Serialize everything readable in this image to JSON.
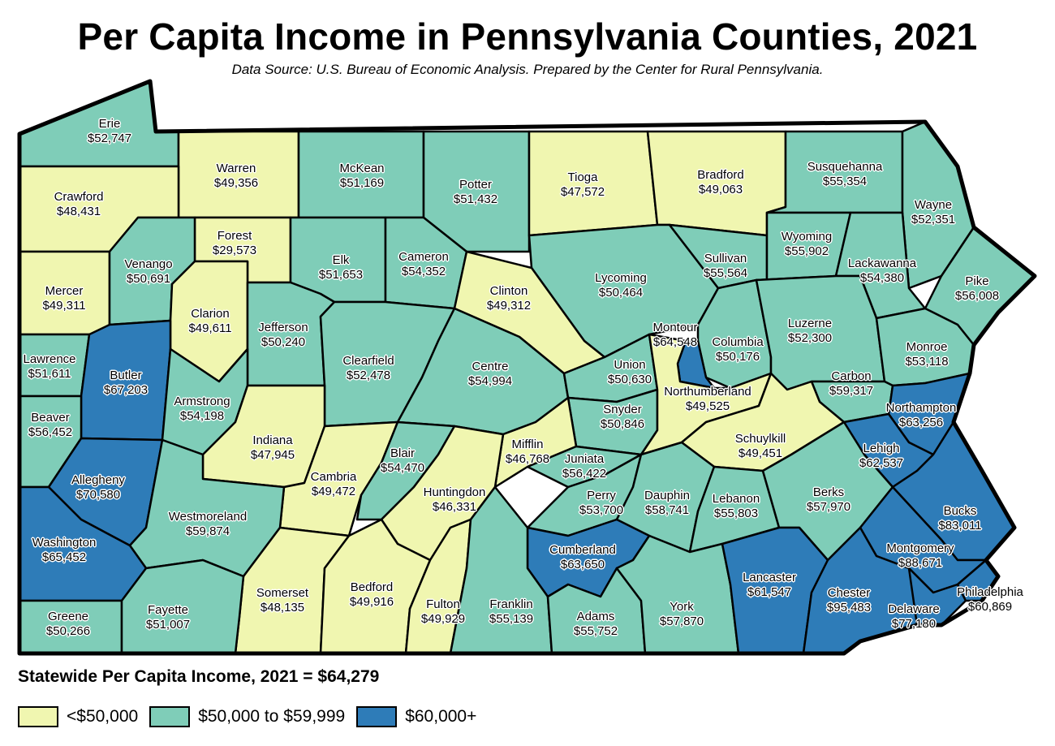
{
  "title": "Per Capita Income in Pennsylvania Counties, 2021",
  "subtitle": "Data Source: U.S. Bureau of Economic Analysis. Prepared by the Center for Rural Pennsylvania.",
  "statewide": "Statewide Per Capita Income, 2021 = $64,279",
  "colors": {
    "low": "#f0f6b0",
    "mid": "#7fcdb8",
    "high": "#2e7cb8"
  },
  "legend": [
    {
      "key": "low",
      "label": "<$50,000"
    },
    {
      "key": "mid",
      "label": "$50,000 to $59,999"
    },
    {
      "key": "high",
      "label": "$60,000+"
    }
  ],
  "counties": [
    {
      "key": "erie",
      "name": "Erie",
      "value": "$52,747",
      "class": "mid"
    },
    {
      "key": "crawford",
      "name": "Crawford",
      "value": "$48,431",
      "class": "low"
    },
    {
      "key": "warren",
      "name": "Warren",
      "value": "$49,356",
      "class": "low"
    },
    {
      "key": "mckean",
      "name": "McKean",
      "value": "$51,169",
      "class": "mid"
    },
    {
      "key": "potter",
      "name": "Potter",
      "value": "$51,432",
      "class": "mid"
    },
    {
      "key": "tioga",
      "name": "Tioga",
      "value": "$47,572",
      "class": "low"
    },
    {
      "key": "bradford",
      "name": "Bradford",
      "value": "$49,063",
      "class": "low"
    },
    {
      "key": "susquehanna",
      "name": "Susquehanna",
      "value": "$55,354",
      "class": "mid"
    },
    {
      "key": "wayne",
      "name": "Wayne",
      "value": "$52,351",
      "class": "mid"
    },
    {
      "key": "forest",
      "name": "Forest",
      "value": "$29,573",
      "class": "low"
    },
    {
      "key": "elk",
      "name": "Elk",
      "value": "$51,653",
      "class": "mid"
    },
    {
      "key": "cameron",
      "name": "Cameron",
      "value": "$54,352",
      "class": "mid"
    },
    {
      "key": "mercer",
      "name": "Mercer",
      "value": "$49,311",
      "class": "low"
    },
    {
      "key": "venango",
      "name": "Venango",
      "value": "$50,691",
      "class": "mid"
    },
    {
      "key": "clarion",
      "name": "Clarion",
      "value": "$49,611",
      "class": "low"
    },
    {
      "key": "jefferson",
      "name": "Jefferson",
      "value": "$50,240",
      "class": "mid"
    },
    {
      "key": "clinton",
      "name": "Clinton",
      "value": "$49,312",
      "class": "low"
    },
    {
      "key": "lycoming",
      "name": "Lycoming",
      "value": "$50,464",
      "class": "mid"
    },
    {
      "key": "sullivan",
      "name": "Sullivan",
      "value": "$55,564",
      "class": "mid"
    },
    {
      "key": "wyoming",
      "name": "Wyoming",
      "value": "$55,902",
      "class": "mid"
    },
    {
      "key": "lackawanna",
      "name": "Lackawanna",
      "value": "$54,380",
      "class": "mid"
    },
    {
      "key": "pike",
      "name": "Pike",
      "value": "$56,008",
      "class": "mid"
    },
    {
      "key": "lawrence",
      "name": "Lawrence",
      "value": "$51,611",
      "class": "mid"
    },
    {
      "key": "butler",
      "name": "Butler",
      "value": "$67,203",
      "class": "high"
    },
    {
      "key": "clearfield",
      "name": "Clearfield",
      "value": "$52,478",
      "class": "mid"
    },
    {
      "key": "centre",
      "name": "Centre",
      "value": "$54,994",
      "class": "mid"
    },
    {
      "key": "union",
      "name": "Union",
      "value": "$50,630",
      "class": "mid"
    },
    {
      "key": "montour",
      "name": "Montour",
      "value": "$64,548",
      "class": "high"
    },
    {
      "key": "columbia",
      "name": "Columbia",
      "value": "$50,176",
      "class": "mid"
    },
    {
      "key": "luzerne",
      "name": "Luzerne",
      "value": "$52,300",
      "class": "mid"
    },
    {
      "key": "monroe",
      "name": "Monroe",
      "value": "$53,118",
      "class": "mid"
    },
    {
      "key": "beaver",
      "name": "Beaver",
      "value": "$56,452",
      "class": "mid"
    },
    {
      "key": "armstrong",
      "name": "Armstrong",
      "value": "$54,198",
      "class": "mid"
    },
    {
      "key": "indiana",
      "name": "Indiana",
      "value": "$47,945",
      "class": "low"
    },
    {
      "key": "snyder",
      "name": "Snyder",
      "value": "$50,846",
      "class": "mid"
    },
    {
      "key": "northumberland",
      "name": "Northumberland",
      "value": "$49,525",
      "class": "low"
    },
    {
      "key": "carbon",
      "name": "Carbon",
      "value": "$59,317",
      "class": "mid"
    },
    {
      "key": "northampton",
      "name": "Northampton",
      "value": "$63,256",
      "class": "high"
    },
    {
      "key": "allegheny",
      "name": "Allegheny",
      "value": "$70,580",
      "class": "high"
    },
    {
      "key": "cambria",
      "name": "Cambria",
      "value": "$49,472",
      "class": "low"
    },
    {
      "key": "blair",
      "name": "Blair",
      "value": "$54,470",
      "class": "mid"
    },
    {
      "key": "mifflin",
      "name": "Mifflin",
      "value": "$46,768",
      "class": "low"
    },
    {
      "key": "juniata",
      "name": "Juniata",
      "value": "$56,422",
      "class": "mid"
    },
    {
      "key": "schuylkill",
      "name": "Schuylkill",
      "value": "$49,451",
      "class": "low"
    },
    {
      "key": "lehigh",
      "name": "Lehigh",
      "value": "$62,537",
      "class": "high"
    },
    {
      "key": "westmoreland",
      "name": "Westmoreland",
      "value": "$59,874",
      "class": "mid"
    },
    {
      "key": "huntingdon",
      "name": "Huntingdon",
      "value": "$46,331",
      "class": "low"
    },
    {
      "key": "perry",
      "name": "Perry",
      "value": "$53,700",
      "class": "mid"
    },
    {
      "key": "dauphin",
      "name": "Dauphin",
      "value": "$58,741",
      "class": "mid"
    },
    {
      "key": "lebanon",
      "name": "Lebanon",
      "value": "$55,803",
      "class": "mid"
    },
    {
      "key": "berks",
      "name": "Berks",
      "value": "$57,970",
      "class": "mid"
    },
    {
      "key": "bucks",
      "name": "Bucks",
      "value": "$83,011",
      "class": "high"
    },
    {
      "key": "washington",
      "name": "Washington",
      "value": "$65,452",
      "class": "high"
    },
    {
      "key": "cumberland",
      "name": "Cumberland",
      "value": "$63,650",
      "class": "high"
    },
    {
      "key": "montgomery",
      "name": "Montgomery",
      "value": "$88,671",
      "class": "high"
    },
    {
      "key": "somerset",
      "name": "Somerset",
      "value": "$48,135",
      "class": "low"
    },
    {
      "key": "bedford",
      "name": "Bedford",
      "value": "$49,916",
      "class": "low"
    },
    {
      "key": "fulton",
      "name": "Fulton",
      "value": "$49,929",
      "class": "low"
    },
    {
      "key": "franklin",
      "name": "Franklin",
      "value": "$55,139",
      "class": "mid"
    },
    {
      "key": "adams",
      "name": "Adams",
      "value": "$55,752",
      "class": "mid"
    },
    {
      "key": "york",
      "name": "York",
      "value": "$57,870",
      "class": "mid"
    },
    {
      "key": "lancaster",
      "name": "Lancaster",
      "value": "$61,547",
      "class": "high"
    },
    {
      "key": "chester",
      "name": "Chester",
      "value": "$95,483",
      "class": "high"
    },
    {
      "key": "delaware",
      "name": "Delaware",
      "value": "$77,180",
      "class": "high"
    },
    {
      "key": "philadelphia",
      "name": "Philadelphia",
      "value": "$60,869",
      "class": "high"
    },
    {
      "key": "greene",
      "name": "Greene",
      "value": "$50,266",
      "class": "mid"
    },
    {
      "key": "fayette",
      "name": "Fayette",
      "value": "$51,007",
      "class": "mid"
    }
  ]
}
